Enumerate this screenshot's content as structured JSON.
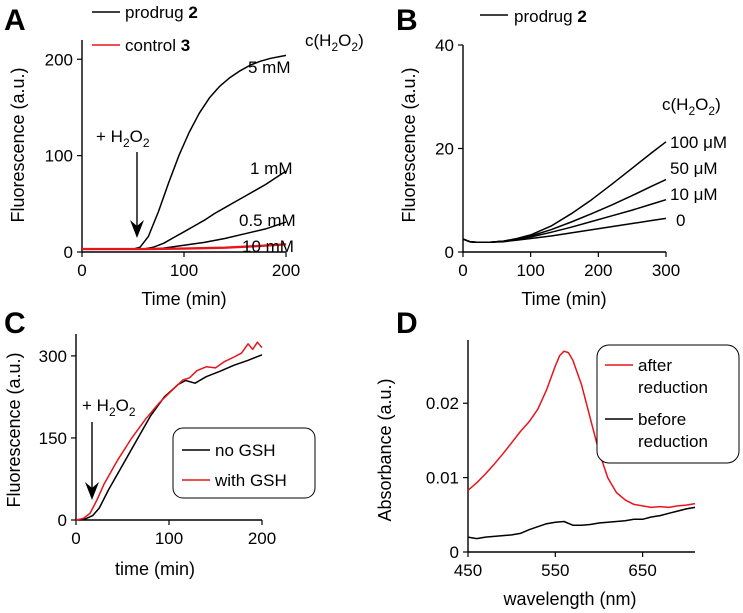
{
  "chart_data": [
    {
      "panel": "A",
      "type": "line",
      "xlabel": "Time (min)",
      "ylabel": "Fluorescence (a.u.)",
      "xlim": [
        0,
        200
      ],
      "ylim": [
        0,
        220
      ],
      "xticks": [
        0,
        100,
        200
      ],
      "yticks": [
        0,
        100,
        200
      ],
      "legend": [
        {
          "name": "prodrug",
          "num": "2",
          "color": "#000000"
        },
        {
          "name": "control",
          "num": "3",
          "color": "#e8141c"
        }
      ],
      "conc_header": "c(H",
      "conc_header_sub": "2",
      "conc_header_tail": "O",
      "conc_header_sub2": "2",
      "conc_header_close": ")",
      "annotation": "+ H",
      "annotation_sub": "2",
      "annotation_o": "O",
      "annotation_sub2": "2",
      "series": [
        {
          "label": "5 mM",
          "color": "#000000",
          "x": [
            0,
            50,
            57,
            65,
            75,
            85,
            95,
            105,
            115,
            125,
            135,
            145,
            155,
            165,
            175,
            185,
            195,
            200
          ],
          "y": [
            3,
            3,
            5,
            16,
            42,
            72,
            100,
            124,
            144,
            160,
            172,
            181,
            188,
            194,
            198,
            201,
            203,
            204
          ]
        },
        {
          "label": "1 mM",
          "color": "#000000",
          "x": [
            0,
            60,
            70,
            80,
            90,
            100,
            110,
            120,
            130,
            140,
            150,
            160,
            170,
            180,
            190,
            200
          ],
          "y": [
            3,
            3,
            5,
            9,
            15,
            21,
            27,
            33,
            40,
            46,
            52,
            58,
            64,
            70,
            77,
            84
          ]
        },
        {
          "label": "0.5 mM",
          "color": "#000000",
          "x": [
            0,
            65,
            80,
            100,
            120,
            140,
            160,
            180,
            200
          ],
          "y": [
            3,
            3,
            4,
            7,
            10,
            14,
            19,
            24,
            31
          ]
        },
        {
          "label": "10 mM",
          "color": "#e8141c",
          "x": [
            0,
            60,
            100,
            140,
            170,
            200
          ],
          "y": [
            3,
            3,
            3.5,
            4.5,
            6,
            8
          ]
        }
      ]
    },
    {
      "panel": "B",
      "type": "line",
      "xlabel": "Time (min)",
      "ylabel": "Fluorescence (a.u.)",
      "xlim": [
        0,
        300
      ],
      "ylim": [
        0,
        40
      ],
      "xticks": [
        0,
        100,
        200,
        300
      ],
      "yticks": [
        0,
        20,
        40
      ],
      "legend": [
        {
          "name": "prodrug",
          "num": "2",
          "color": "#000000"
        }
      ],
      "conc_header": "c(H",
      "conc_header_sub": "2",
      "conc_header_tail": "O",
      "conc_header_sub2": "2",
      "conc_header_close": ")",
      "series": [
        {
          "label": "100 μM",
          "color": "#000000",
          "x": [
            0,
            10,
            20,
            40,
            60,
            80,
            100,
            130,
            160,
            190,
            220,
            250,
            280,
            300
          ],
          "y": [
            2.5,
            2.0,
            1.9,
            1.9,
            2.1,
            2.6,
            3.3,
            5.0,
            7.4,
            10.1,
            13.1,
            16.2,
            19.3,
            21.3
          ]
        },
        {
          "label": "50 μM",
          "color": "#000000",
          "x": [
            0,
            10,
            20,
            40,
            60,
            80,
            100,
            130,
            160,
            190,
            220,
            250,
            280,
            300
          ],
          "y": [
            2.5,
            2.0,
            1.9,
            1.9,
            2.1,
            2.5,
            3.1,
            4.3,
            5.8,
            7.4,
            9.1,
            10.9,
            12.8,
            14.0
          ]
        },
        {
          "label": "10 μM",
          "color": "#000000",
          "x": [
            0,
            10,
            20,
            40,
            60,
            80,
            100,
            130,
            160,
            190,
            220,
            250,
            280,
            300
          ],
          "y": [
            2.5,
            2.0,
            1.9,
            1.9,
            2.1,
            2.4,
            2.9,
            3.8,
            4.8,
            5.9,
            7.0,
            8.1,
            9.3,
            10.1
          ]
        },
        {
          "label": "0",
          "color": "#000000",
          "x": [
            0,
            10,
            20,
            40,
            60,
            80,
            100,
            130,
            160,
            190,
            220,
            250,
            280,
            300
          ],
          "y": [
            2.5,
            2.0,
            1.9,
            1.9,
            2.0,
            2.3,
            2.6,
            3.1,
            3.7,
            4.3,
            4.9,
            5.5,
            6.1,
            6.5
          ]
        }
      ]
    },
    {
      "panel": "C",
      "type": "line",
      "xlabel": "time (min)",
      "ylabel": "Fluorescence (a.u.)",
      "xlim": [
        0,
        200
      ],
      "ylim": [
        0,
        340
      ],
      "xticks": [
        0,
        100,
        200
      ],
      "yticks": [
        0,
        150,
        300
      ],
      "annotation": "+ H",
      "annotation_sub": "2",
      "annotation_o": "O",
      "annotation_sub2": "2",
      "legend_position": "center-right",
      "series": [
        {
          "label": "no GSH",
          "color": "#000000",
          "x": [
            0,
            10,
            18,
            25,
            35,
            50,
            65,
            80,
            95,
            110,
            118,
            128,
            140,
            155,
            170,
            185,
            200
          ],
          "y": [
            0,
            2,
            8,
            22,
            55,
            100,
            145,
            190,
            225,
            248,
            255,
            250,
            262,
            272,
            283,
            292,
            302
          ]
        },
        {
          "label": "with GSH",
          "color": "#e8141c",
          "x": [
            0,
            8,
            15,
            22,
            30,
            45,
            60,
            75,
            90,
            105,
            115,
            122,
            130,
            140,
            150,
            160,
            170,
            178,
            185,
            190,
            195,
            200
          ],
          "y": [
            0,
            3,
            12,
            35,
            65,
            110,
            150,
            185,
            215,
            240,
            256,
            260,
            273,
            280,
            278,
            290,
            298,
            305,
            322,
            312,
            325,
            315
          ]
        }
      ]
    },
    {
      "panel": "D",
      "type": "line",
      "xlabel": "wavelength (nm)",
      "ylabel": "Absorbance (a.u.)",
      "xlim": [
        450,
        710
      ],
      "ylim": [
        0,
        0.0285
      ],
      "xticks": [
        450,
        550,
        650
      ],
      "yticks": [
        0,
        0.01,
        0.02
      ],
      "ytick_labels": [
        "0",
        "0.01",
        "0.02"
      ],
      "legend_position": "top-right",
      "series": [
        {
          "label": "after reduction",
          "label_line1": "after",
          "label_line2": "reduction",
          "color": "#e8141c",
          "x": [
            450,
            460,
            470,
            480,
            490,
            500,
            510,
            520,
            530,
            540,
            550,
            555,
            560,
            565,
            570,
            580,
            590,
            600,
            610,
            620,
            630,
            640,
            650,
            660,
            670,
            680,
            690,
            700,
            710
          ],
          "y": [
            0.0083,
            0.0093,
            0.0105,
            0.0118,
            0.0132,
            0.0147,
            0.0162,
            0.0175,
            0.0192,
            0.0218,
            0.025,
            0.0264,
            0.027,
            0.0268,
            0.0258,
            0.0225,
            0.018,
            0.0135,
            0.01,
            0.008,
            0.007,
            0.0064,
            0.0062,
            0.006,
            0.0061,
            0.006,
            0.0062,
            0.0063,
            0.0065
          ]
        },
        {
          "label": "before reduction",
          "label_line1": "before",
          "label_line2": "reduction",
          "color": "#000000",
          "x": [
            450,
            460,
            470,
            480,
            490,
            500,
            510,
            520,
            530,
            540,
            550,
            560,
            570,
            580,
            590,
            600,
            610,
            620,
            630,
            640,
            650,
            660,
            670,
            680,
            690,
            700,
            710
          ],
          "y": [
            0.002,
            0.0018,
            0.002,
            0.0021,
            0.0022,
            0.0023,
            0.0025,
            0.003,
            0.0034,
            0.0038,
            0.004,
            0.0041,
            0.0036,
            0.0036,
            0.0037,
            0.0039,
            0.004,
            0.0041,
            0.0042,
            0.0044,
            0.0044,
            0.0047,
            0.0049,
            0.0052,
            0.0055,
            0.0058,
            0.006
          ]
        }
      ]
    }
  ]
}
